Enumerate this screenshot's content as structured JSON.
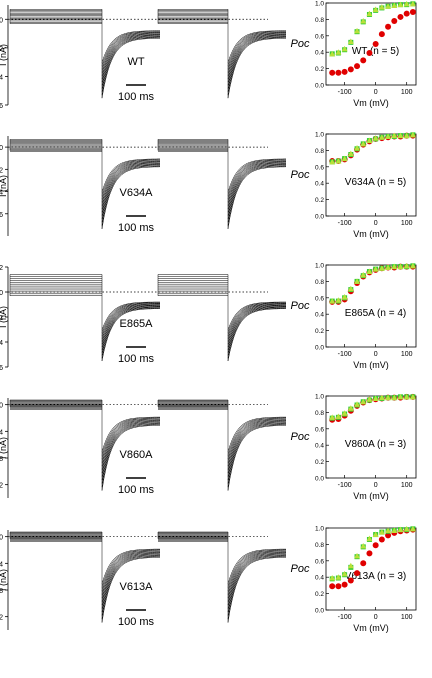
{
  "chart_data": [
    {
      "type": "line",
      "title": "",
      "xlabel": "",
      "ylabel": "I (nA)",
      "ylim": [
        -6,
        1
      ],
      "yticks": [
        -6,
        -4,
        -2,
        0
      ],
      "label": "WT",
      "scalebar_label": "100 ms",
      "poc_panel": {
        "type": "scatter",
        "ylabel": "Poc",
        "xlabel": "Vm (mV)",
        "ylim": [
          0.0,
          1.0
        ],
        "yticks": [
          0.0,
          0.2,
          0.4,
          0.6,
          0.8,
          1.0
        ],
        "xlim": [
          -160,
          130
        ],
        "xticks": [
          -100,
          0,
          100
        ],
        "annotation": "WT (n = 5)",
        "x": [
          -140,
          -120,
          -100,
          -80,
          -60,
          -40,
          -20,
          0,
          20,
          40,
          60,
          80,
          100,
          120
        ],
        "series": [
          {
            "values": [
              0.15,
              0.15,
              0.16,
              0.19,
              0.23,
              0.3,
              0.39,
              0.5,
              0.62,
              0.71,
              0.78,
              0.83,
              0.87,
              0.89
            ],
            "color": "#e00000",
            "marker": "circle"
          },
          {
            "values": [
              0.38,
              0.39,
              0.43,
              0.52,
              0.65,
              0.77,
              0.86,
              0.91,
              0.94,
              0.96,
              0.97,
              0.98,
              0.98,
              0.99
            ],
            "color": "#33cc33",
            "marker": "square"
          },
          {
            "values": [
              0.38,
              0.4,
              0.44,
              0.53,
              0.66,
              0.78,
              0.87,
              0.92,
              0.95,
              0.96,
              0.97,
              0.98,
              0.99,
              0.99
            ],
            "color": "#b8e03a",
            "marker": "triangle"
          }
        ]
      }
    },
    {
      "type": "line",
      "title": "",
      "xlabel": "",
      "ylabel": "I (nA)",
      "ylim": [
        -8,
        1
      ],
      "yticks": [
        -6,
        -4,
        -2,
        0
      ],
      "label": "V634A",
      "scalebar_label": "100 ms",
      "poc_panel": {
        "type": "scatter",
        "ylabel": "Poc",
        "xlabel": "Vm (mV)",
        "ylim": [
          0.0,
          1.0
        ],
        "yticks": [
          0.0,
          0.2,
          0.4,
          0.6,
          0.8,
          1.0
        ],
        "xlim": [
          -160,
          130
        ],
        "xticks": [
          -100,
          0,
          100
        ],
        "annotation": "V634A (n = 5)",
        "x": [
          -140,
          -120,
          -100,
          -80,
          -60,
          -40,
          -20,
          0,
          20,
          40,
          60,
          80,
          100,
          120
        ],
        "series": [
          {
            "values": [
              0.67,
              0.67,
              0.69,
              0.74,
              0.81,
              0.87,
              0.91,
              0.94,
              0.95,
              0.96,
              0.97,
              0.97,
              0.98,
              0.98
            ],
            "color": "#e00000",
            "marker": "circle"
          },
          {
            "values": [
              0.66,
              0.67,
              0.7,
              0.75,
              0.82,
              0.88,
              0.92,
              0.94,
              0.96,
              0.97,
              0.97,
              0.98,
              0.98,
              0.99
            ],
            "color": "#33cc33",
            "marker": "square"
          },
          {
            "values": [
              0.66,
              0.67,
              0.7,
              0.76,
              0.83,
              0.88,
              0.92,
              0.95,
              0.96,
              0.97,
              0.98,
              0.98,
              0.98,
              0.99
            ],
            "color": "#b8e03a",
            "marker": "triangle"
          }
        ]
      }
    },
    {
      "type": "line",
      "title": "",
      "xlabel": "",
      "ylabel": "I (nA)",
      "ylim": [
        -6,
        2
      ],
      "yticks": [
        -6,
        -4,
        -2,
        0,
        2
      ],
      "label": "E865A",
      "scalebar_label": "100 ms",
      "poc_panel": {
        "type": "scatter",
        "ylabel": "Poc",
        "xlabel": "Vm (mV)",
        "ylim": [
          0.0,
          1.0
        ],
        "yticks": [
          0.0,
          0.2,
          0.4,
          0.6,
          0.8,
          1.0
        ],
        "xlim": [
          -160,
          130
        ],
        "xticks": [
          -100,
          0,
          100
        ],
        "annotation": "E865A (n = 4)",
        "x": [
          -140,
          -120,
          -100,
          -80,
          -60,
          -40,
          -20,
          0,
          20,
          40,
          60,
          80,
          100,
          120
        ],
        "series": [
          {
            "values": [
              0.55,
              0.55,
              0.58,
              0.68,
              0.78,
              0.86,
              0.91,
              0.94,
              0.96,
              0.97,
              0.97,
              0.98,
              0.98,
              0.98
            ],
            "color": "#e00000",
            "marker": "circle"
          },
          {
            "values": [
              0.56,
              0.56,
              0.6,
              0.7,
              0.8,
              0.87,
              0.92,
              0.95,
              0.96,
              0.97,
              0.98,
              0.98,
              0.98,
              0.99
            ],
            "color": "#33cc33",
            "marker": "square"
          },
          {
            "values": [
              0.56,
              0.57,
              0.61,
              0.71,
              0.8,
              0.88,
              0.92,
              0.95,
              0.96,
              0.97,
              0.98,
              0.98,
              0.99,
              0.99
            ],
            "color": "#b8e03a",
            "marker": "triangle"
          }
        ]
      }
    },
    {
      "type": "line",
      "title": "",
      "xlabel": "",
      "ylabel": "I (nA)",
      "ylim": [
        -14,
        1
      ],
      "yticks": [
        -12,
        -8,
        -4,
        0
      ],
      "label": "V860A",
      "scalebar_label": "100 ms",
      "poc_panel": {
        "type": "scatter",
        "ylabel": "Poc",
        "xlabel": "Vm (mV)",
        "ylim": [
          0.0,
          1.0
        ],
        "yticks": [
          0.0,
          0.2,
          0.4,
          0.6,
          0.8,
          1.0
        ],
        "xlim": [
          -160,
          130
        ],
        "xticks": [
          -100,
          0,
          100
        ],
        "annotation": "V860A (n = 3)",
        "x": [
          -140,
          -120,
          -100,
          -80,
          -60,
          -40,
          -20,
          0,
          20,
          40,
          60,
          80,
          100,
          120
        ],
        "series": [
          {
            "values": [
              0.71,
              0.72,
              0.76,
              0.82,
              0.88,
              0.92,
              0.95,
              0.96,
              0.97,
              0.98,
              0.98,
              0.98,
              0.99,
              0.99
            ],
            "color": "#e00000",
            "marker": "circle"
          },
          {
            "values": [
              0.73,
              0.74,
              0.78,
              0.84,
              0.89,
              0.93,
              0.95,
              0.97,
              0.97,
              0.98,
              0.98,
              0.99,
              0.99,
              0.99
            ],
            "color": "#33cc33",
            "marker": "square"
          },
          {
            "values": [
              0.74,
              0.75,
              0.79,
              0.85,
              0.9,
              0.93,
              0.96,
              0.97,
              0.98,
              0.98,
              0.98,
              0.99,
              0.99,
              0.99
            ],
            "color": "#b8e03a",
            "marker": "triangle"
          }
        ]
      }
    },
    {
      "type": "line",
      "title": "",
      "xlabel": "",
      "ylabel": "I (nA)",
      "ylim": [
        -14,
        1
      ],
      "yticks": [
        -12,
        -8,
        -4,
        0
      ],
      "label": "V613A",
      "scalebar_label": "100 ms",
      "poc_panel": {
        "type": "scatter",
        "ylabel": "Poc",
        "xlabel": "Vm (mV)",
        "ylim": [
          0.0,
          1.0
        ],
        "yticks": [
          0.0,
          0.2,
          0.4,
          0.6,
          0.8,
          1.0
        ],
        "xlim": [
          -160,
          130
        ],
        "xticks": [
          -100,
          0,
          100
        ],
        "annotation": "V613A (n = 3)",
        "x": [
          -140,
          -120,
          -100,
          -80,
          -60,
          -40,
          -20,
          0,
          20,
          40,
          60,
          80,
          100,
          120
        ],
        "series": [
          {
            "values": [
              0.29,
              0.29,
              0.31,
              0.36,
              0.45,
              0.57,
              0.69,
              0.79,
              0.86,
              0.91,
              0.94,
              0.96,
              0.97,
              0.98
            ],
            "color": "#e00000",
            "marker": "circle"
          },
          {
            "values": [
              0.38,
              0.39,
              0.43,
              0.52,
              0.65,
              0.77,
              0.86,
              0.92,
              0.95,
              0.96,
              0.97,
              0.98,
              0.98,
              0.99
            ],
            "color": "#33cc33",
            "marker": "square"
          },
          {
            "values": [
              0.39,
              0.4,
              0.44,
              0.54,
              0.66,
              0.78,
              0.87,
              0.92,
              0.95,
              0.97,
              0.97,
              0.98,
              0.99,
              0.99
            ],
            "color": "#b8e03a",
            "marker": "triangle"
          }
        ]
      }
    }
  ]
}
